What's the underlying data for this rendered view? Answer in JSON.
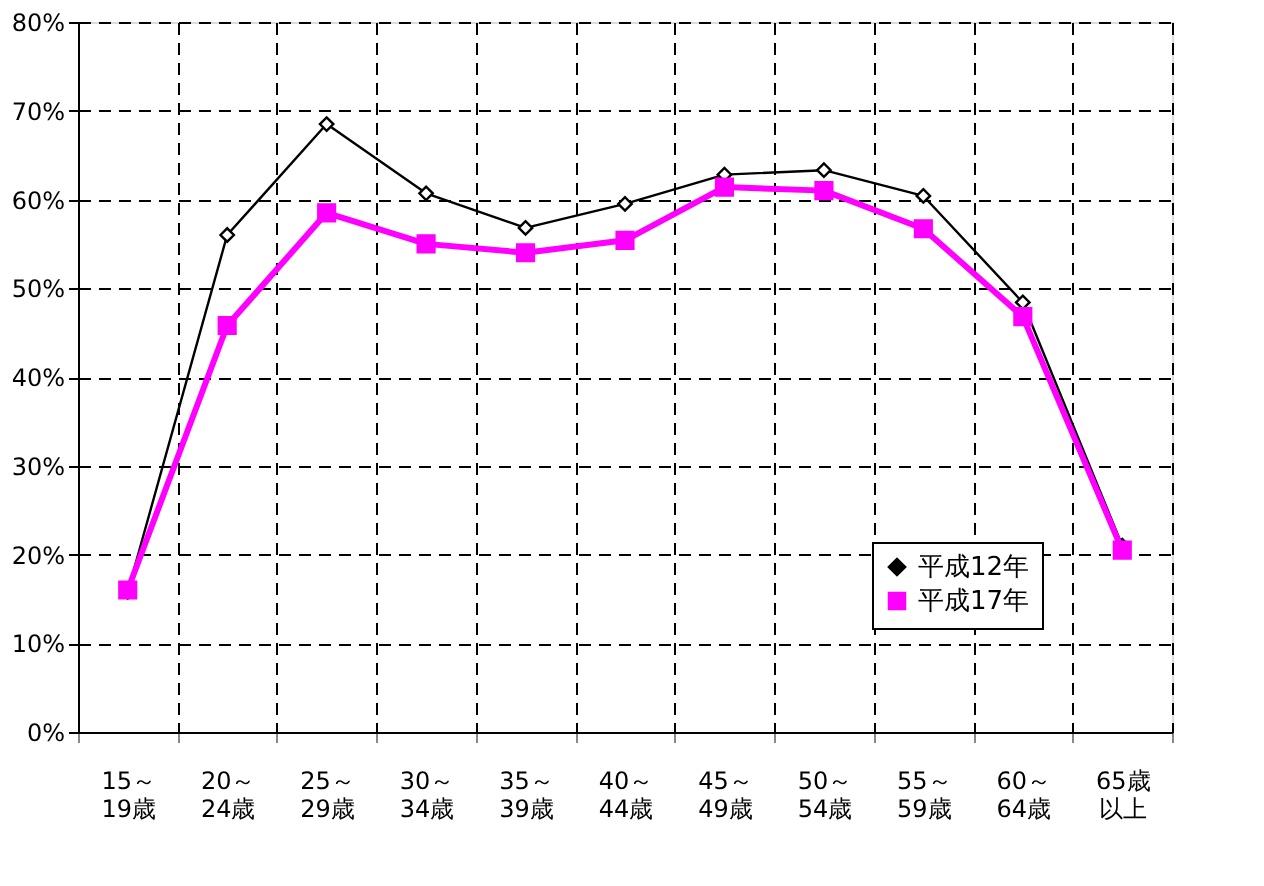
{
  "chart_data": {
    "type": "line",
    "categories": [
      "15～\n19歳",
      "20～\n24歳",
      "25～\n29歳",
      "30～\n34歳",
      "35～\n39歳",
      "40～\n44歳",
      "45～\n49歳",
      "50～\n54歳",
      "55～\n59歳",
      "60～\n64歳",
      "65歳以上"
    ],
    "series": [
      {
        "name": "平成12年",
        "color": "#000000",
        "marker": "diamond",
        "values": [
          15.8,
          56,
          68.5,
          60.7,
          56.8,
          59.5,
          62.8,
          63.3,
          60.4,
          48.4,
          21
        ]
      },
      {
        "name": "平成17年",
        "color": "#ff00ff",
        "marker": "square",
        "values": [
          16,
          45.8,
          58.5,
          55,
          54,
          55.4,
          61.4,
          61,
          56.7,
          46.8,
          20.5
        ]
      }
    ],
    "ylim": [
      0,
      80
    ],
    "yticks": [
      {
        "value": 0,
        "label": "0%"
      },
      {
        "value": 10,
        "label": "10%"
      },
      {
        "value": 20,
        "label": "20%"
      },
      {
        "value": 30,
        "label": "30%"
      },
      {
        "value": 40,
        "label": "40%"
      },
      {
        "value": 50,
        "label": "50%"
      },
      {
        "value": 60,
        "label": "60%"
      },
      {
        "value": 70,
        "label": "70%"
      },
      {
        "value": 80,
        "label": "80%"
      }
    ],
    "grid": true,
    "line_style": "solid",
    "legend": "bottom right"
  }
}
